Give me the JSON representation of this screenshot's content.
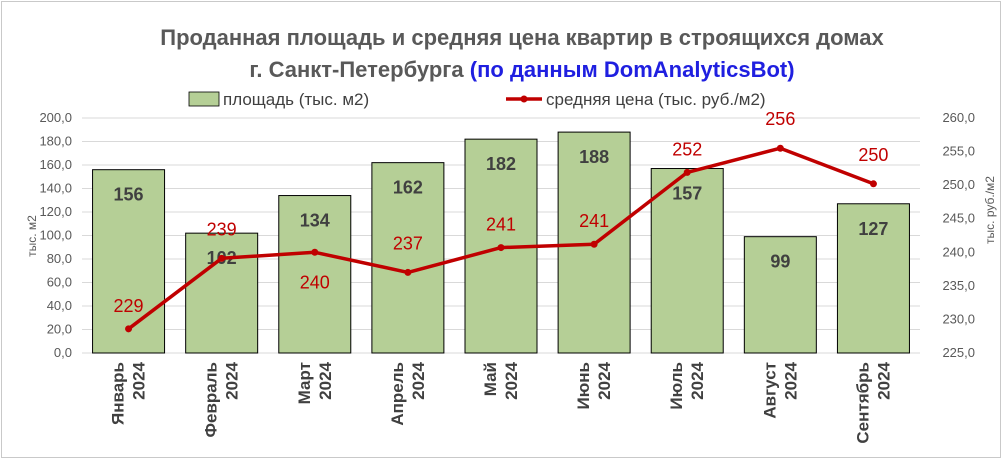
{
  "title": {
    "line1": "Проданная площадь и средняя цена квартир в строящихся домах",
    "line2_main": "г. Санкт-Петербурга ",
    "line2_source": "(по данным DomAnalyticsBot)"
  },
  "legend": {
    "bars": "площадь (тыс. м2)",
    "line": "средняя цена (тыс. руб./м2)"
  },
  "colors": {
    "bar_fill": "#b5cf96",
    "bar_stroke": "#000000",
    "line": "#c00000",
    "grid": "#d9d9d9",
    "source_text": "#1f1fe0"
  },
  "chart_data": {
    "type": "bar",
    "categories": [
      [
        "Январь",
        "2024"
      ],
      [
        "Февраль",
        "2024"
      ],
      [
        "Март",
        "2024"
      ],
      [
        "Апрель",
        "2024"
      ],
      [
        "Май",
        "2024"
      ],
      [
        "Июнь",
        "2024"
      ],
      [
        "Июль",
        "2024"
      ],
      [
        "Август",
        "2024"
      ],
      [
        "Сентябрь",
        "2024"
      ]
    ],
    "series": [
      {
        "name": "площадь (тыс. м2)",
        "type": "bar",
        "axis": "left",
        "values": [
          156,
          102,
          134,
          162,
          182,
          188,
          157,
          99,
          127
        ],
        "labels": [
          "156",
          "102",
          "134",
          "162",
          "182",
          "188",
          "157",
          "99",
          "127"
        ]
      },
      {
        "name": "средняя цена (тыс. руб./м2)",
        "type": "line",
        "axis": "right",
        "values": [
          228.6,
          239.1,
          240.0,
          237.0,
          240.7,
          241.2,
          251.9,
          255.5,
          250.2
        ],
        "labels": [
          "229",
          "239",
          "240",
          "237",
          "241",
          "241",
          "252",
          "256",
          "250"
        ]
      }
    ],
    "y_left": {
      "label": "тыс. м2",
      "min": 0,
      "max": 200,
      "step": 20,
      "ticks": [
        "0,0",
        "20,0",
        "40,0",
        "60,0",
        "80,0",
        "100,0",
        "120,0",
        "140,0",
        "160,0",
        "180,0",
        "200,0"
      ]
    },
    "y_right": {
      "label": "тыс. руб./м2",
      "min": 225,
      "max": 260,
      "step": 5,
      "ticks": [
        "225,0",
        "230,0",
        "235,0",
        "240,0",
        "245,0",
        "250,0",
        "255,0",
        "260,0"
      ]
    },
    "grid": true,
    "legend_position": "top"
  }
}
